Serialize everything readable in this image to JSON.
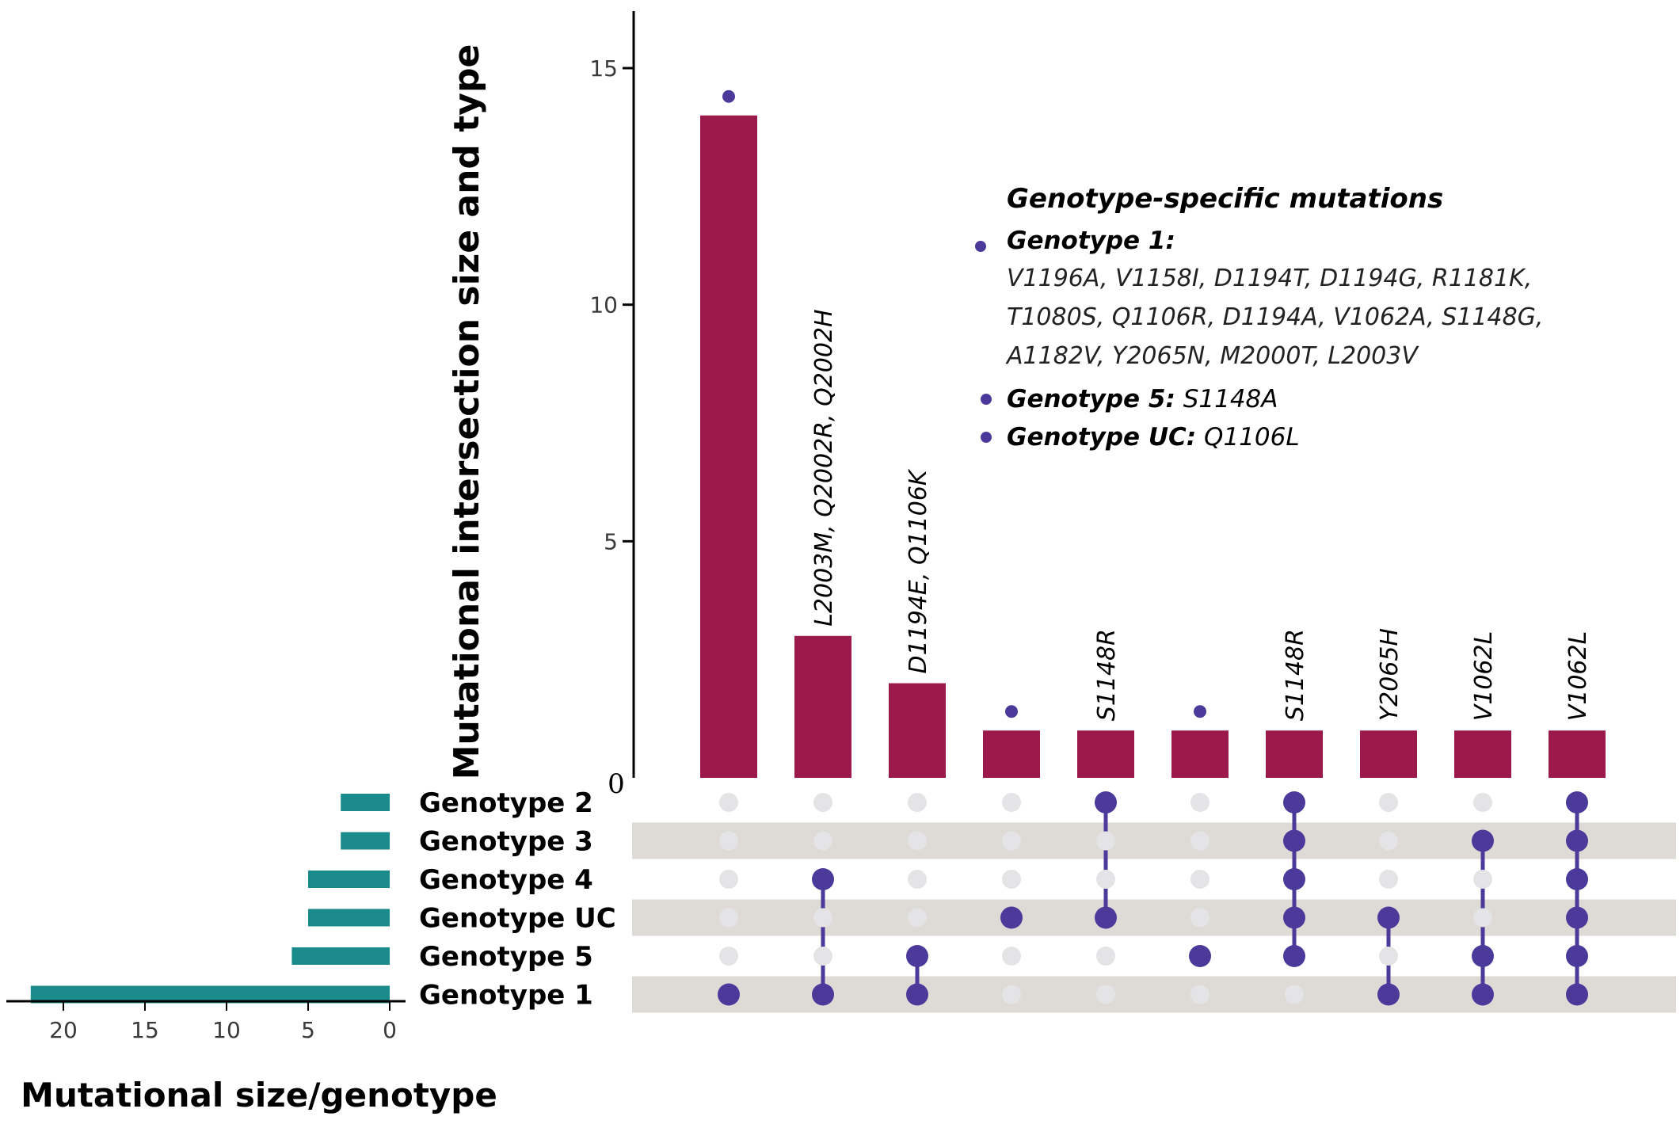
{
  "chart_data": {
    "type": "upset",
    "ylabel": "Mutational intersection size and type",
    "yticks": [
      0,
      5,
      10,
      15
    ],
    "ylim": [
      0,
      16
    ],
    "sets": [
      "Genotype 2",
      "Genotype 3",
      "Genotype 4",
      "Genotype UC",
      "Genotype 5",
      "Genotype 1"
    ],
    "set_sizes": {
      "xlabel": "Mutational size/genotype",
      "xticks": [
        20,
        15,
        10,
        5,
        0
      ],
      "xlim": [
        23,
        0
      ],
      "values": [
        3,
        3,
        5,
        5,
        6,
        22
      ]
    },
    "intersections": [
      {
        "value": 14,
        "members": [
          "Genotype 1"
        ],
        "annotation": "",
        "dot": true
      },
      {
        "value": 3,
        "members": [
          "Genotype 4",
          "Genotype 1"
        ],
        "annotation": "L2003M, Q2002R, Q2002H",
        "dot": false
      },
      {
        "value": 2,
        "members": [
          "Genotype 5",
          "Genotype 1"
        ],
        "annotation": "D1194E, Q1106K",
        "dot": false
      },
      {
        "value": 1,
        "members": [
          "Genotype UC"
        ],
        "annotation": "",
        "dot": true
      },
      {
        "value": 1,
        "members": [
          "Genotype 2",
          "Genotype UC"
        ],
        "annotation": "S1148R",
        "dot": false
      },
      {
        "value": 1,
        "members": [
          "Genotype 5"
        ],
        "annotation": "",
        "dot": true
      },
      {
        "value": 1,
        "members": [
          "Genotype 2",
          "Genotype 3",
          "Genotype 4",
          "Genotype UC",
          "Genotype 5"
        ],
        "annotation": "S1148R",
        "dot": false
      },
      {
        "value": 1,
        "members": [
          "Genotype UC",
          "Genotype 1"
        ],
        "annotation": "Y2065H",
        "dot": false
      },
      {
        "value": 1,
        "members": [
          "Genotype 3",
          "Genotype 5",
          "Genotype 1"
        ],
        "annotation": "V1062L",
        "dot": false
      },
      {
        "value": 1,
        "members": [
          "Genotype 2",
          "Genotype 3",
          "Genotype 4",
          "Genotype UC",
          "Genotype 5",
          "Genotype 1"
        ],
        "annotation": "V1062L",
        "dot": false
      }
    ],
    "legend": {
      "title": "Genotype-specific  mutations",
      "entries": [
        {
          "head": "Genotype 1:",
          "lines": [
            "V1196A, V1158I, D1194T, D1194G, R1181K,",
            "T1080S, Q1106R, D1194A, V1062A, S1148G,",
            "A1182V, Y2065N, M2000T, L2003V"
          ]
        },
        {
          "head": "Genotype 5",
          "colon": ":",
          "tail": " S1148A"
        },
        {
          "head": "Genotype UC",
          "colon": ":",
          "tail": " Q1106L"
        }
      ]
    },
    "colors": {
      "bar": "#9b1a4b",
      "set_bar": "#1b8a8a",
      "dot": "#4b3a9a",
      "dot_inactive": "#e4e4e6",
      "stripe": "#dedbd6",
      "axis": "#000000"
    }
  }
}
